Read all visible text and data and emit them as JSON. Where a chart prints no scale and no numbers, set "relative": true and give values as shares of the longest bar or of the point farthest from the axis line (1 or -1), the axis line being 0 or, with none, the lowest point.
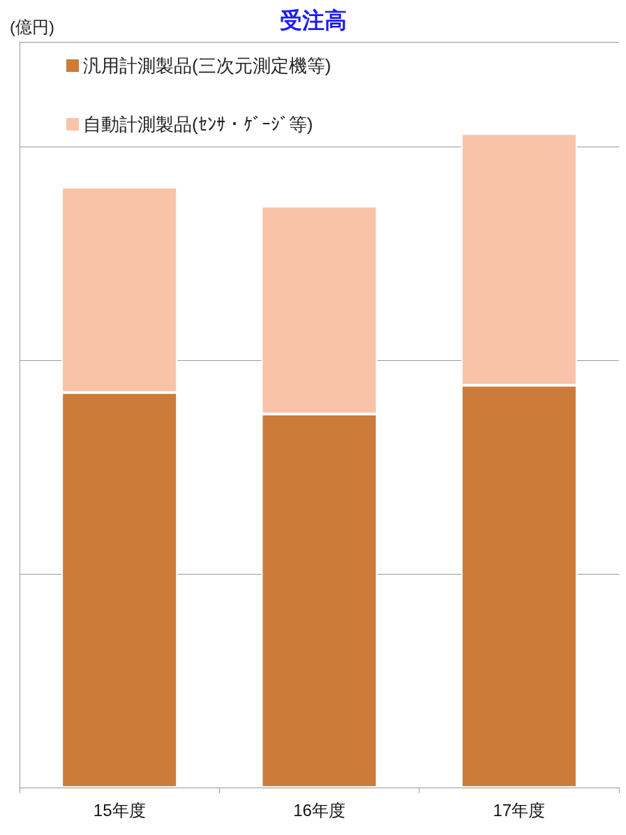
{
  "chart_data": {
    "type": "bar",
    "title": "受注高",
    "annotations": [
      "(億円)"
    ],
    "categories": [
      "15年度",
      "16年度",
      "17年度"
    ],
    "series": [
      {
        "name": "汎用計測製品(三次元測定機等)",
        "color": "#cc7b38",
        "values": [
          0.604,
          0.571,
          0.615
        ]
      },
      {
        "name": "自動計測製品(ｾﾝｻ・ｹﾞｰｼﾞ等)",
        "color": "#f8c3a8",
        "values": [
          0.314,
          0.318,
          0.385
        ]
      }
    ],
    "stacked": true,
    "relative": true,
    "grid": "y",
    "legend": "top left"
  }
}
